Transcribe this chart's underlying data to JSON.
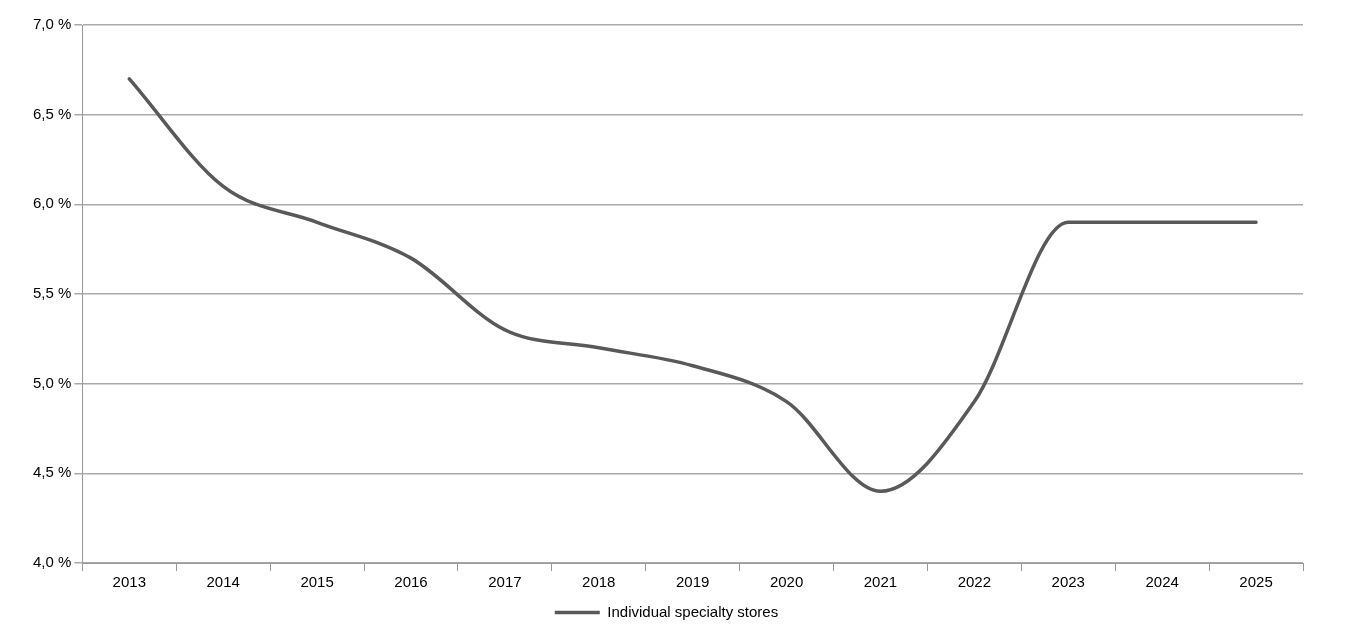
{
  "chart_data": {
    "type": "line",
    "categories": [
      "2013",
      "2014",
      "2015",
      "2016",
      "2017",
      "2018",
      "2019",
      "2020",
      "2021",
      "2022",
      "2023",
      "2024",
      "2025"
    ],
    "series": [
      {
        "name": "Individual specialty stores",
        "color": "#595959",
        "values": [
          6.7,
          6.1,
          5.9,
          5.7,
          5.3,
          5.2,
          5.1,
          4.9,
          4.4,
          4.9,
          5.9,
          5.9,
          5.9
        ]
      }
    ],
    "ylim": [
      4.0,
      7.0
    ],
    "yticks": [
      {
        "value": 4.0,
        "label": "4,0 %"
      },
      {
        "value": 4.5,
        "label": "4,5 %"
      },
      {
        "value": 5.0,
        "label": "5,0 %"
      },
      {
        "value": 5.5,
        "label": "5,5 %"
      },
      {
        "value": 6.0,
        "label": "6,0 %"
      },
      {
        "value": 6.5,
        "label": "6,5 %"
      },
      {
        "value": 7.0,
        "label": "7,0 %"
      }
    ],
    "grid": "y",
    "legend": "bottom",
    "marker": "none",
    "line_style": "solid"
  }
}
